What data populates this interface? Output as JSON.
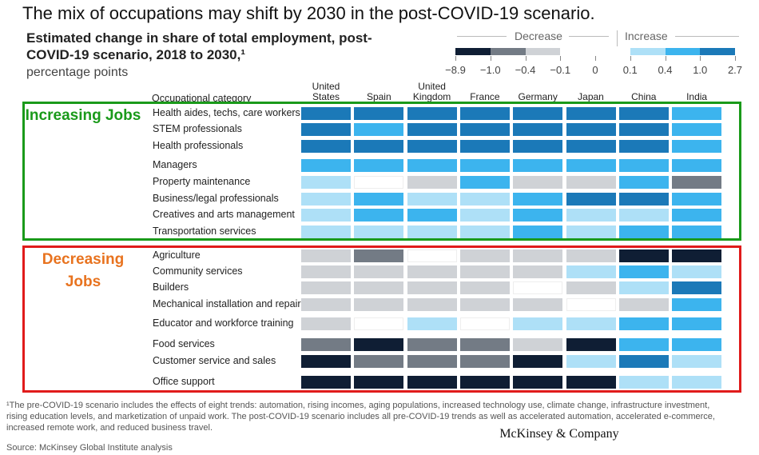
{
  "chart_data": {
    "type": "heatmap",
    "title": "The mix of occupations may shift by 2030 in the post-COVID-19 scenario.",
    "subtitle": "Estimated change in share of total employment, post-COVID-19 scenario, 2018 to 2030,¹",
    "unit": "percentage points",
    "row_axis_label": "Occupational category",
    "categories": [
      "United States",
      "Spain",
      "United Kingdom",
      "France",
      "Germany",
      "Japan",
      "China",
      "India"
    ],
    "legend_labels": [
      "Decrease",
      "Increase"
    ],
    "scale_ticks": [
      {
        "value": -8.9,
        "label": "−8.9"
      },
      {
        "value": -1.0,
        "label": "−1.0"
      },
      {
        "value": -0.4,
        "label": "−0.4"
      },
      {
        "value": -0.1,
        "label": "−0.1"
      },
      0,
      0.1,
      0.4,
      {
        "value": 1.0,
        "label": "1.0"
      },
      2.7
    ],
    "scale_colors": [
      "#0f1e34",
      "#737b85",
      "#cfd2d6",
      "#ffffff",
      "#ffffff",
      "#aee0f7",
      "#3cb4ee",
      "#1b79b8"
    ],
    "groups": [
      {
        "label": "Increasing Jobs",
        "color": "#1a9a1a",
        "series": [
          {
            "name": "Health aides, techs, care workers",
            "values": [
              1.5,
              1.5,
              1.5,
              1.5,
              1.5,
              1.5,
              1.5,
              0.7
            ]
          },
          {
            "name": "STEM professionals",
            "values": [
              1.5,
              0.7,
              1.5,
              1.5,
              1.5,
              1.5,
              1.5,
              0.7
            ]
          },
          {
            "name": "Health professionals",
            "values": [
              1.5,
              1.5,
              1.5,
              1.5,
              1.5,
              1.5,
              1.5,
              0.7
            ]
          },
          {
            "name": "Managers",
            "values": [
              0.7,
              0.7,
              0.7,
              0.7,
              0.7,
              0.7,
              0.7,
              0.7
            ]
          },
          {
            "name": "Property maintenance",
            "values": [
              0.25,
              0,
              -0.25,
              0.7,
              -0.25,
              -0.25,
              0.7,
              -0.7
            ]
          },
          {
            "name": "Business/legal professionals",
            "values": [
              0.25,
              0.7,
              0.25,
              0.25,
              0.7,
              1.5,
              1.5,
              0.7
            ]
          },
          {
            "name": "Creatives and arts management",
            "values": [
              0.25,
              0.7,
              0.7,
              0.25,
              0.7,
              0.25,
              0.25,
              0.7
            ]
          },
          {
            "name": "Transportation services",
            "values": [
              0.25,
              0.25,
              0.25,
              0.25,
              0.7,
              0.25,
              0.7,
              0.7
            ]
          }
        ]
      },
      {
        "label": "Decreasing Jobs",
        "color": "#e8731f",
        "series": [
          {
            "name": "Agriculture",
            "values": [
              -0.25,
              -0.7,
              0,
              -0.25,
              -0.25,
              -0.25,
              -2.0,
              -2.0
            ]
          },
          {
            "name": "Community services",
            "values": [
              -0.25,
              -0.25,
              -0.25,
              -0.25,
              -0.25,
              0.25,
              0.7,
              0.25
            ]
          },
          {
            "name": "Builders",
            "values": [
              -0.25,
              -0.25,
              -0.25,
              -0.25,
              0,
              -0.25,
              0.25,
              1.5
            ]
          },
          {
            "name": "Mechanical installation and repair",
            "values": [
              -0.25,
              -0.25,
              -0.25,
              -0.25,
              -0.25,
              0,
              -0.25,
              0.7
            ]
          },
          {
            "name": "Educator and workforce training",
            "values": [
              -0.25,
              0,
              0.25,
              0,
              0.25,
              0.25,
              0.7,
              0.7
            ]
          },
          {
            "name": "Food services",
            "values": [
              -0.7,
              -2.0,
              -0.7,
              -0.7,
              -0.25,
              -2.0,
              0.7,
              0.7
            ]
          },
          {
            "name": "Customer service and sales",
            "values": [
              -2.0,
              -0.7,
              -0.7,
              -0.7,
              -2.0,
              0.25,
              1.5,
              0.25
            ]
          },
          {
            "name": "Office support",
            "values": [
              -2.0,
              -2.0,
              -2.0,
              -2.0,
              -2.0,
              -2.0,
              0.25,
              0.25
            ]
          }
        ]
      }
    ],
    "footnote": "¹The pre-COVID-19 scenario includes the effects of eight trends: automation, rising incomes, aging populations, increased technology use, climate change, infrastructure investment, rising education levels, and marketization of unpaid work. The post-COVID-19 scenario includes all pre-COVID-19 trends as well as accelerated automation, accelerated e-commerce, increased remote work, and reduced business travel.",
    "source": "Source: McKinsey Global Institute analysis",
    "brand": "McKinsey & Company"
  }
}
